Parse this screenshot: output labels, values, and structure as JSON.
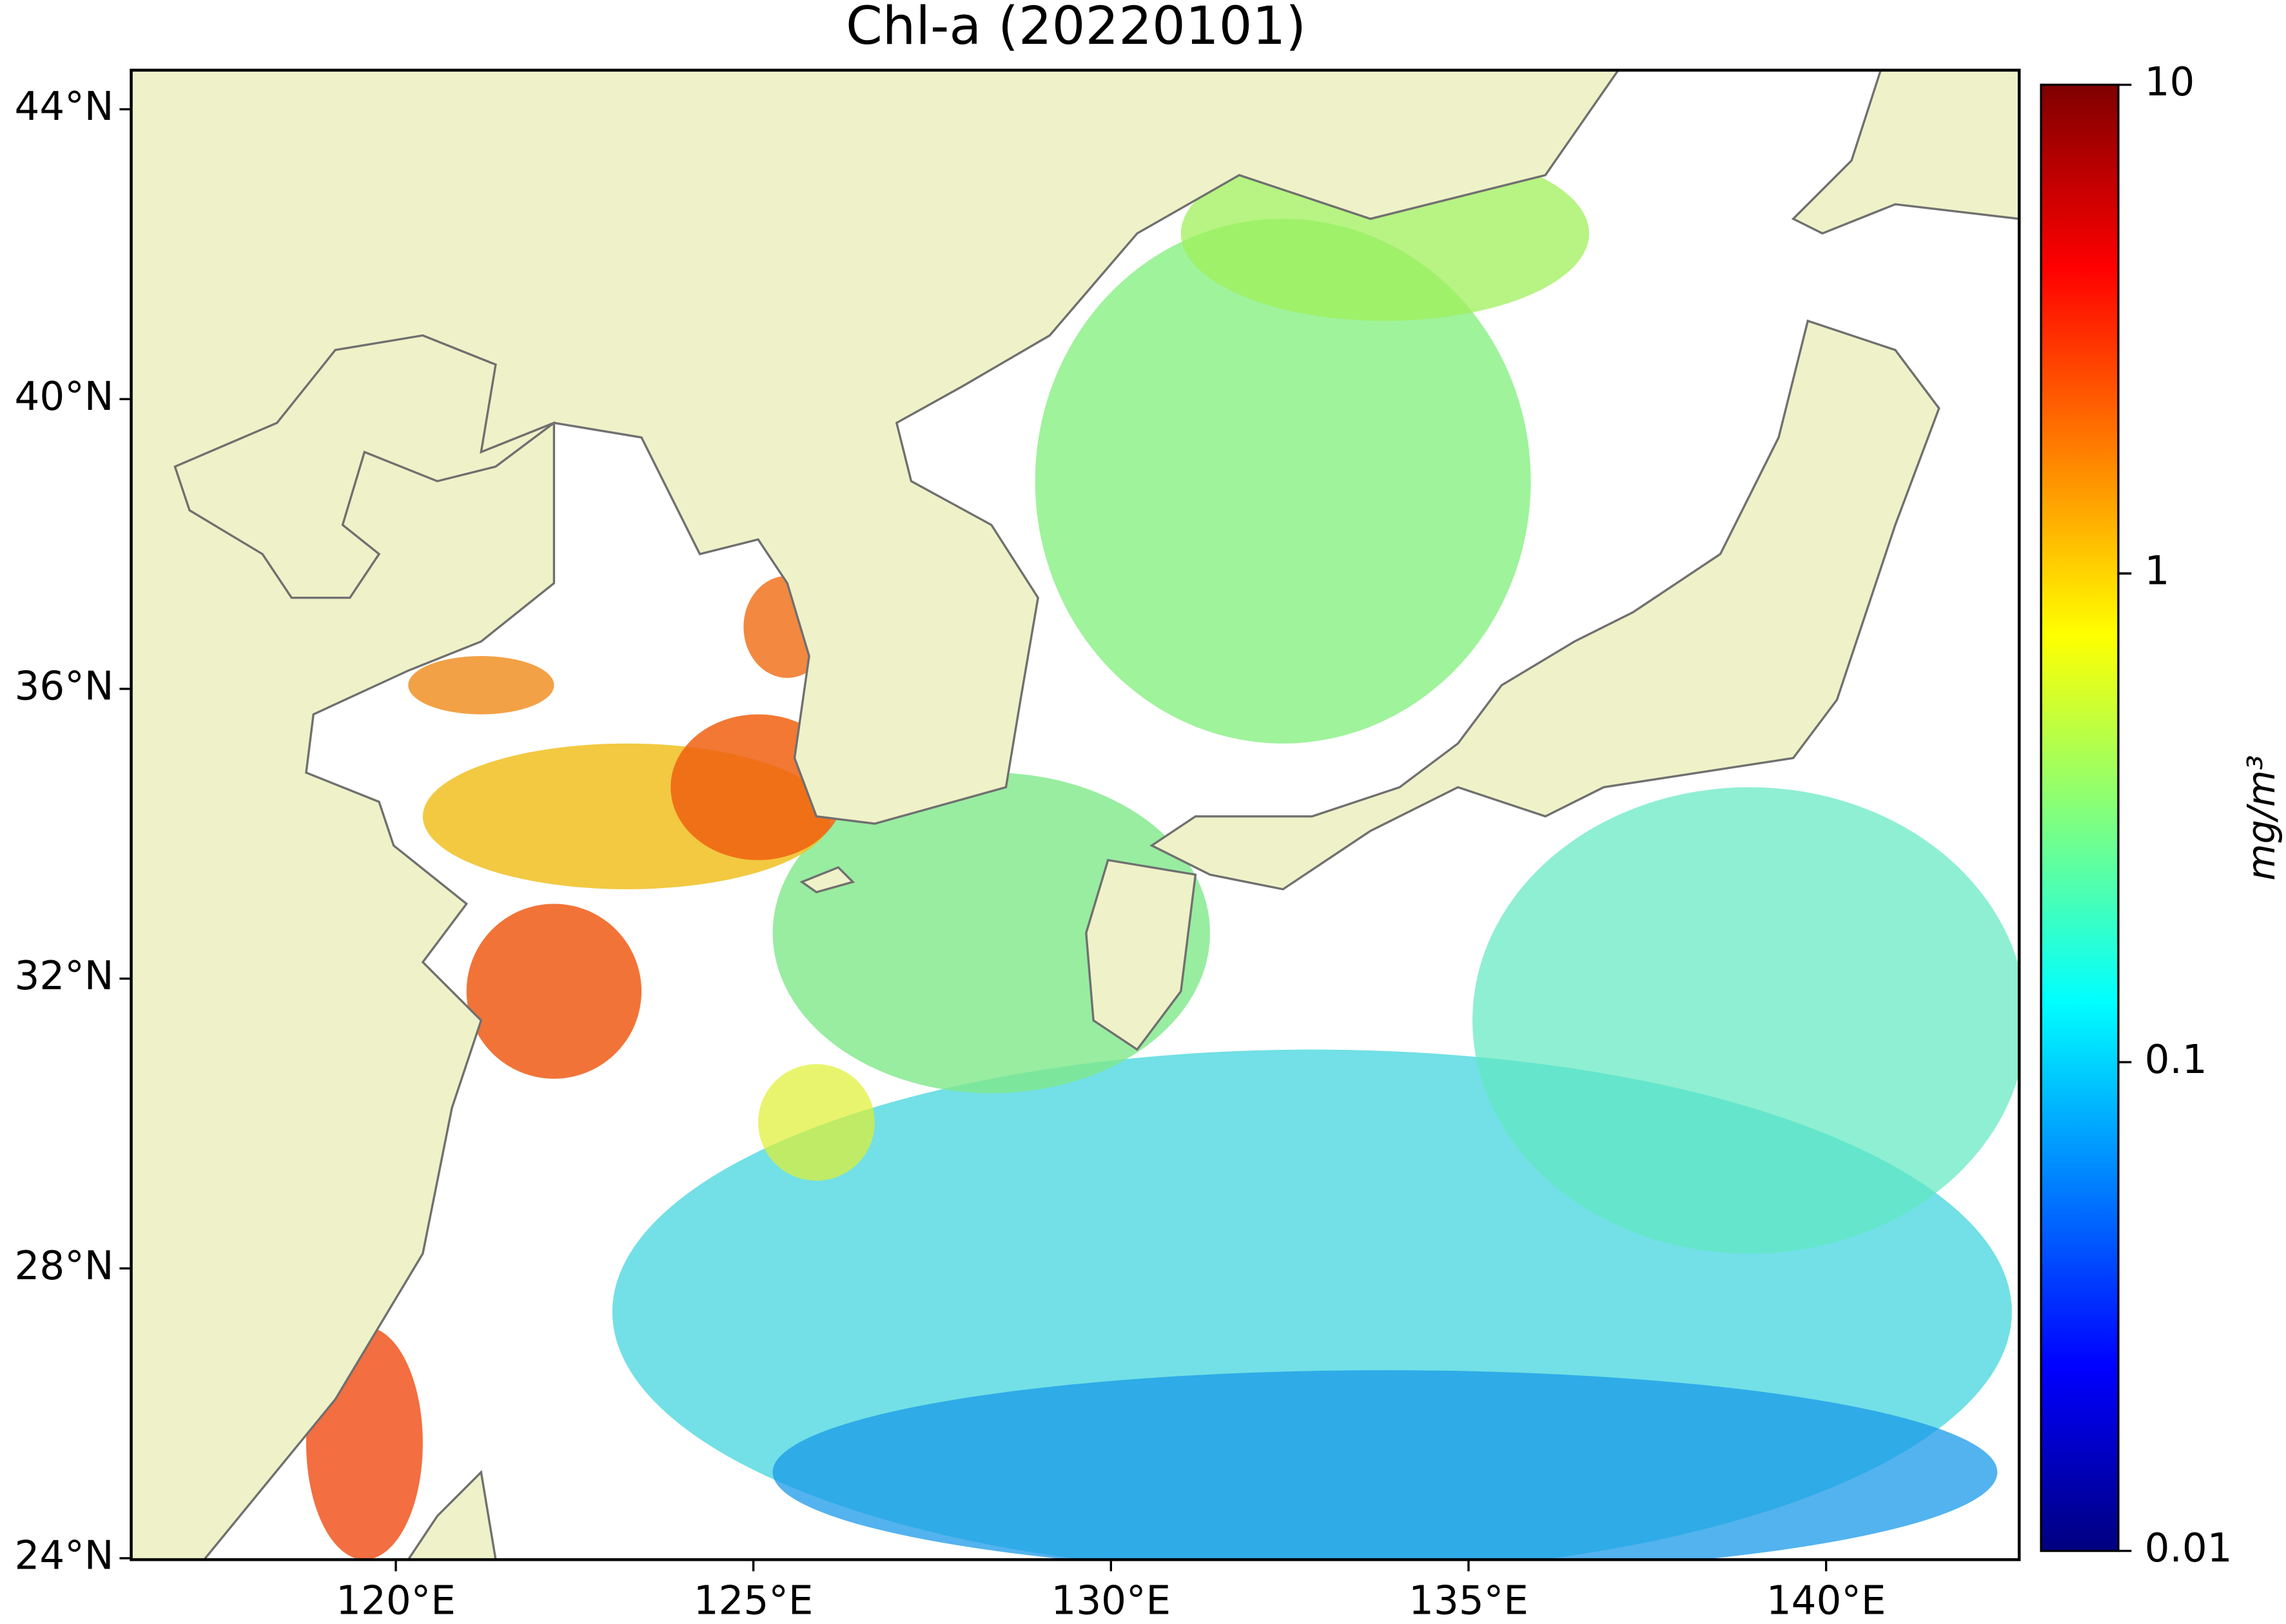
{
  "chart_data": {
    "type": "map",
    "title": "Chl-a (20220101)",
    "xlim": [
      116.3,
      142.7
    ],
    "ylim": [
      23.98,
      44.54
    ],
    "xticks": [
      {
        "value": 120,
        "label": "120°E"
      },
      {
        "value": 125,
        "label": "125°E"
      },
      {
        "value": 130,
        "label": "130°E"
      },
      {
        "value": 135,
        "label": "135°E"
      },
      {
        "value": 140,
        "label": "140°E"
      }
    ],
    "yticks": [
      {
        "value": 24,
        "label": "24°N"
      },
      {
        "value": 28,
        "label": "28°N"
      },
      {
        "value": 32,
        "label": "32°N"
      },
      {
        "value": 36,
        "label": "36°N"
      },
      {
        "value": 40,
        "label": "40°N"
      },
      {
        "value": 44,
        "label": "44°N"
      }
    ],
    "colorbar": {
      "label": "mg/m³",
      "log_scale": true,
      "lim": [
        0.01,
        10
      ],
      "ticks": [
        0.01,
        0.1,
        1,
        10
      ],
      "colormap": [
        "#00007f",
        "#0000ff",
        "#007fff",
        "#00ffff",
        "#7fff7f",
        "#ffff00",
        "#ff7f00",
        "#ff0000",
        "#7f0000"
      ]
    },
    "land_color": "#eff2c8"
  }
}
